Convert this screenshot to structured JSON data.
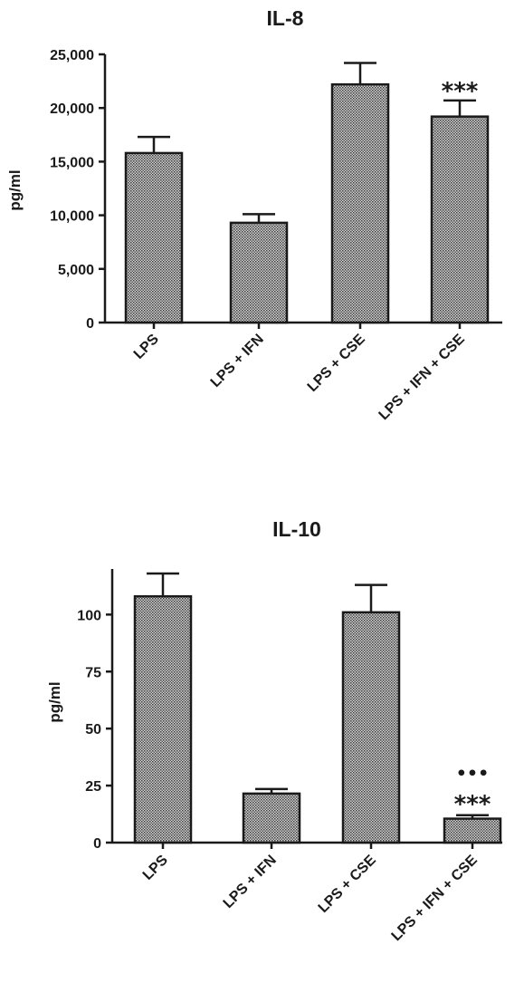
{
  "chart_data": [
    {
      "type": "bar",
      "title": "IL-8",
      "ylabel": "pg/ml",
      "xlabel": "",
      "categories": [
        "LPS",
        "LPS + IFN",
        "LPS + CSE",
        "LPS + IFN + CSE"
      ],
      "values": [
        15800,
        9300,
        22200,
        19200
      ],
      "errors": [
        1500,
        800,
        2000,
        1500
      ],
      "yticks": [
        "0",
        "5,000",
        "10,000",
        "15,000",
        "20,000",
        "25,000"
      ],
      "ytick_values": [
        0,
        5000,
        10000,
        15000,
        20000,
        25000
      ],
      "ylim": [
        0,
        25000
      ],
      "annotations": [
        {
          "category": "LPS + IFN + CSE",
          "text": "***"
        }
      ],
      "bar_fill": "#9a9a9a",
      "grid": false,
      "legend": "none"
    },
    {
      "type": "bar",
      "title": "IL-10",
      "ylabel": "pg/ml",
      "xlabel": "",
      "categories": [
        "LPS",
        "LPS + IFN",
        "LPS + CSE",
        "LPS + IFN + CSE"
      ],
      "values": [
        108,
        21.5,
        101,
        10.5
      ],
      "errors": [
        10,
        2,
        12,
        1.5
      ],
      "yticks": [
        "0",
        "25",
        "50",
        "75",
        "100"
      ],
      "ytick_values": [
        0,
        25,
        50,
        75,
        100
      ],
      "ylim": [
        0,
        120
      ],
      "annotations": [
        {
          "category": "LPS + IFN + CSE",
          "text": "***"
        },
        {
          "category": "LPS + IFN + CSE",
          "text": "•••"
        }
      ],
      "bar_fill": "#9a9a9a",
      "grid": false,
      "legend": "none"
    }
  ]
}
